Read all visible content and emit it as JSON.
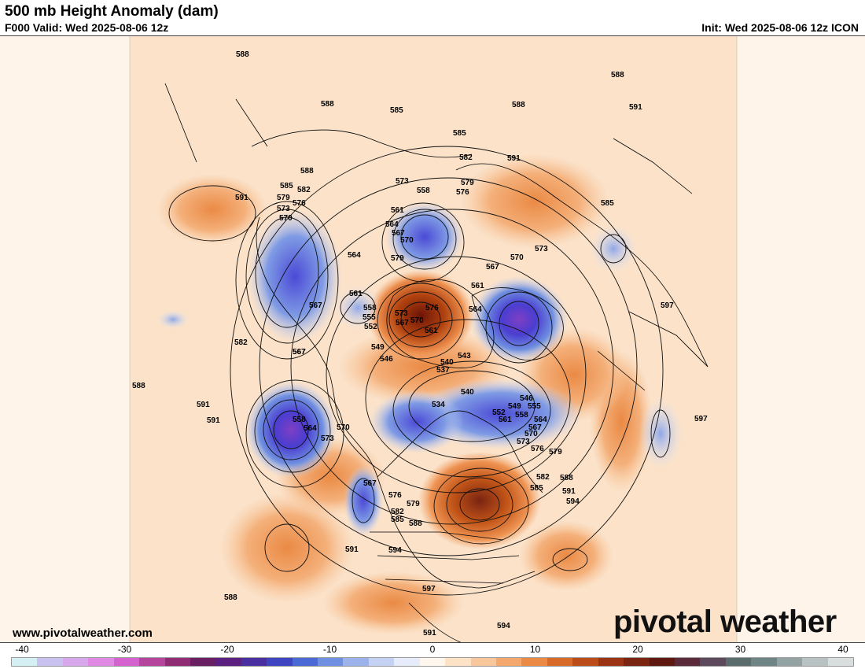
{
  "header": {
    "title": "500 mb Height Anomaly (dam)",
    "valid": "F000 Valid: Wed 2025-08-06 12z",
    "init": "Init: Wed 2025-08-06 12z ICON"
  },
  "footer": {
    "website": "www.pivotalweather.com",
    "brand": "pivotal weather"
  },
  "colorbar": {
    "ticks": [
      "-40",
      "-30",
      "-20",
      "-10",
      "0",
      "10",
      "20",
      "30",
      "40"
    ],
    "colors": [
      "#d4f0f5",
      "#c9c2ef",
      "#d8a8ec",
      "#e18ae3",
      "#d463cf",
      "#b5459c",
      "#8f2c73",
      "#6b1f63",
      "#5c2080",
      "#4a2fa0",
      "#3f45c0",
      "#4b6ad6",
      "#6f8fe0",
      "#9cb2ea",
      "#c6d2f3",
      "#e6ecf9",
      "#fff7ee",
      "#fde2c6",
      "#f9c79c",
      "#f4a86e",
      "#ea8a45",
      "#d86a2a",
      "#bb4d1b",
      "#9a3414",
      "#7a2412",
      "#5e1810",
      "#5b2a3a",
      "#5c4a5c",
      "#5b6c6c",
      "#6f8585",
      "#93a2a2",
      "#b9c2c2",
      "#d9dede"
    ],
    "range": [
      -40,
      40
    ]
  },
  "map": {
    "contour_labels": [
      "588",
      "588",
      "585",
      "588",
      "585",
      "582",
      "591",
      "588",
      "591",
      "573",
      "558",
      "579",
      "576",
      "588",
      "585",
      "591",
      "579",
      "582",
      "585",
      "576",
      "573",
      "570",
      "561",
      "564",
      "567",
      "570",
      "564",
      "561",
      "579",
      "567",
      "570",
      "573",
      "561",
      "576",
      "573",
      "570",
      "567",
      "558",
      "555",
      "552",
      "561",
      "564",
      "567",
      "582",
      "567",
      "549",
      "546",
      "540",
      "537",
      "543",
      "534",
      "540",
      "546",
      "549",
      "555",
      "552",
      "558",
      "561",
      "564",
      "567",
      "570",
      "573",
      "576",
      "579",
      "588",
      "582",
      "585",
      "591",
      "594",
      "597",
      "588",
      "591",
      "591",
      "567",
      "558",
      "564",
      "573",
      "570",
      "567",
      "576",
      "579",
      "582",
      "585",
      "588",
      "591",
      "594",
      "597",
      "591",
      "594",
      "597",
      "588"
    ]
  }
}
